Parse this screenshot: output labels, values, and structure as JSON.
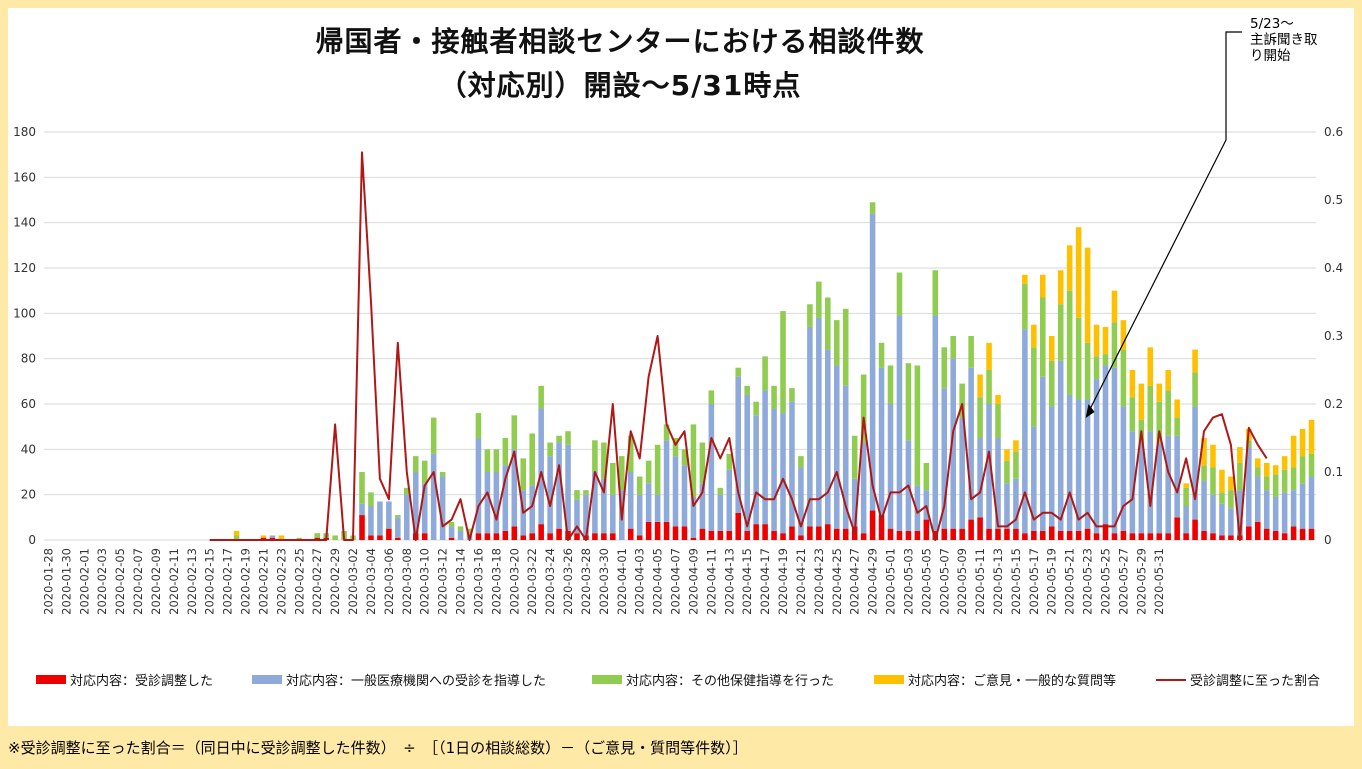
{
  "title_line1": "帰国者・接触者相談センターにおける相談件数",
  "title_line2": "（対応別）開設～5/31時点",
  "annotation": "5/23～\n主訴聞き取\nり開始",
  "footnote": "※受診調整に至った割合＝（同日中に受診調整した件数）　÷　［（1日の相談総数）－（ご意見・質問等件数）］",
  "colors": {
    "red": "#ee0000",
    "blue": "#8eaadb",
    "green": "#8fcc4f",
    "orange": "#ffc000",
    "line": "#b01818",
    "grid": "#d9d9d9",
    "background": "#ffe9a6"
  },
  "chart_data": {
    "type": "bar",
    "stacked": true,
    "secondary_line": true,
    "ylim": [
      0,
      180
    ],
    "y2lim": [
      0,
      0.6
    ],
    "yticks": [
      "0",
      "20",
      "40",
      "60",
      "80",
      "100",
      "120",
      "140",
      "160",
      "180"
    ],
    "y2ticks": [
      "0",
      "0.1",
      "0.2",
      "0.3",
      "0.4",
      "0.5",
      "0.6"
    ],
    "grid": true,
    "legend_position": "bottom",
    "start_date": "2020-01-28",
    "x_tick_labels": [
      "2020-01-28",
      "2020-01-30",
      "2020-02-01",
      "2020-02-03",
      "2020-02-05",
      "2020-02-07",
      "2020-02-09",
      "2020-02-11",
      "2020-02-13",
      "2020-02-15",
      "2020-02-17",
      "2020-02-19",
      "2020-02-21",
      "2020-02-23",
      "2020-02-25",
      "2020-02-27",
      "2020-02-29",
      "2020-03-02",
      "2020-03-04",
      "2020-03-06",
      "2020-03-08",
      "2020-03-10",
      "2020-03-12",
      "2020-03-14",
      "2020-03-16",
      "2020-03-18",
      "2020-03-20",
      "2020-03-22",
      "2020-03-24",
      "2020-03-26",
      "2020-03-28",
      "2020-03-30",
      "2020-04-01",
      "2020-04-03",
      "2020-04-05",
      "2020-04-07",
      "2020-04-09",
      "2020-04-11",
      "2020-04-13",
      "2020-04-15",
      "2020-04-17",
      "2020-04-19",
      "2020-04-21",
      "2020-04-23",
      "2020-04-25",
      "2020-04-27",
      "2020-04-29",
      "2020-05-01",
      "2020-05-03",
      "2020-05-05",
      "2020-05-07",
      "2020-05-09",
      "2020-05-11",
      "2020-05-13",
      "2020-05-15",
      "2020-05-17",
      "2020-05-19",
      "2020-05-21",
      "2020-05-23",
      "2020-05-25",
      "2020-05-27",
      "2020-05-29",
      "2020-05-31"
    ],
    "series": [
      {
        "name": "対応内容：受診調整した",
        "color": "#ee0000",
        "values": [
          0,
          0,
          0,
          0,
          0,
          0,
          0,
          0,
          0,
          0,
          0,
          0,
          0,
          0,
          0,
          0,
          0,
          0,
          0,
          0,
          0,
          0,
          0,
          0,
          1,
          1,
          0,
          0,
          0,
          0,
          1,
          1,
          0,
          0,
          0,
          11,
          2,
          2,
          5,
          1,
          0,
          3,
          3,
          0,
          0,
          1,
          0,
          0,
          3,
          3,
          3,
          4,
          6,
          2,
          3,
          7,
          3,
          5,
          4,
          3,
          2,
          3,
          3,
          3,
          0,
          5,
          2,
          8,
          8,
          8,
          6,
          6,
          1,
          5,
          4,
          4,
          4,
          12,
          4,
          7,
          7,
          4,
          3,
          6,
          2,
          6,
          6,
          7,
          5,
          5,
          6,
          3,
          13,
          11,
          5,
          4,
          4,
          4,
          9,
          4,
          5,
          5,
          5,
          9,
          10,
          5,
          5,
          5,
          5,
          3,
          4,
          4,
          6,
          4,
          4,
          4,
          5,
          3,
          7,
          3,
          4,
          3,
          3,
          3,
          3,
          3,
          10,
          3,
          9,
          4,
          3,
          2,
          2,
          2,
          6,
          8,
          5,
          4,
          3,
          6,
          5,
          5
        ]
      },
      {
        "name": "対応内容：一般医療機関への受診を指導した",
        "color": "#8eaadb",
        "values": [
          0,
          0,
          0,
          0,
          0,
          0,
          0,
          0,
          0,
          0,
          0,
          0,
          0,
          0,
          0,
          0,
          0,
          0,
          0,
          0,
          0,
          0,
          0,
          0,
          0,
          1,
          0,
          0,
          0,
          0,
          0,
          0,
          0,
          0,
          0,
          5,
          13,
          15,
          12,
          9,
          20,
          27,
          22,
          38,
          28,
          5,
          4,
          2,
          42,
          27,
          27,
          29,
          34,
          20,
          21,
          51,
          34,
          38,
          38,
          15,
          18,
          27,
          24,
          17,
          22,
          25,
          18,
          17,
          12,
          36,
          31,
          27,
          18,
          20,
          56,
          16,
          27,
          60,
          60,
          48,
          59,
          54,
          53,
          55,
          30,
          88,
          92,
          77,
          72,
          63,
          21,
          40,
          131,
          65,
          55,
          95,
          40,
          20,
          13,
          95,
          62,
          75,
          49,
          67,
          35,
          55,
          40,
          20,
          22,
          90,
          46,
          68,
          53,
          75,
          60,
          58,
          57,
          68,
          70,
          73,
          55,
          45,
          40,
          45,
          40,
          43,
          36,
          12,
          50,
          22,
          17,
          14,
          12,
          20,
          35,
          20,
          17,
          15,
          18,
          16,
          20,
          23
        ]
      },
      {
        "name": "対応内容：その他保健指導を行った",
        "color": "#8fcc4f",
        "values": [
          0,
          0,
          0,
          0,
          0,
          0,
          0,
          0,
          0,
          0,
          0,
          0,
          0,
          0,
          0,
          0,
          0,
          0,
          0,
          0,
          0,
          2,
          0,
          0,
          0,
          0,
          0,
          0,
          1,
          0,
          2,
          2,
          2,
          4,
          2,
          14,
          6,
          0,
          0,
          1,
          3,
          7,
          10,
          16,
          2,
          2,
          2,
          3,
          11,
          10,
          10,
          12,
          15,
          14,
          23,
          10,
          6,
          3,
          6,
          4,
          2,
          14,
          16,
          14,
          15,
          16,
          8,
          10,
          22,
          7,
          8,
          7,
          32,
          18,
          6,
          3,
          7,
          4,
          4,
          6,
          15,
          10,
          45,
          6,
          5,
          10,
          16,
          23,
          20,
          34,
          19,
          30,
          5,
          11,
          17,
          19,
          34,
          53,
          12,
          20,
          18,
          10,
          15,
          14,
          18,
          15,
          15,
          10,
          12,
          20,
          35,
          35,
          20,
          25,
          46,
          36,
          25,
          10,
          5,
          20,
          25,
          15,
          10,
          20,
          18,
          20,
          8,
          8,
          15,
          7,
          12,
          5,
          8,
          12,
          3,
          4,
          6,
          10,
          10,
          10,
          12,
          10
        ]
      },
      {
        "name": "対応内容：ご意見・一般的な質問等",
        "color": "#ffc000",
        "values": [
          0,
          0,
          0,
          0,
          0,
          0,
          0,
          0,
          0,
          0,
          0,
          0,
          0,
          0,
          0,
          0,
          0,
          0,
          0,
          0,
          0,
          2,
          0,
          0,
          1,
          0,
          2,
          0,
          0,
          0,
          0,
          0,
          0,
          0,
          0,
          0,
          0,
          0,
          0,
          0,
          0,
          0,
          0,
          0,
          0,
          0,
          0,
          0,
          0,
          0,
          0,
          0,
          0,
          0,
          0,
          0,
          0,
          0,
          0,
          0,
          0,
          0,
          0,
          0,
          0,
          0,
          0,
          0,
          0,
          0,
          0,
          0,
          0,
          0,
          0,
          0,
          0,
          0,
          0,
          0,
          0,
          0,
          0,
          0,
          0,
          0,
          0,
          0,
          0,
          0,
          0,
          0,
          0,
          0,
          0,
          0,
          0,
          0,
          0,
          0,
          0,
          0,
          0,
          0,
          10,
          12,
          4,
          5,
          5,
          4,
          10,
          10,
          11,
          15,
          20,
          40,
          42,
          14,
          12,
          14,
          13,
          12,
          16,
          17,
          8,
          9,
          8,
          2,
          10,
          12,
          10,
          10,
          6,
          7,
          5,
          4,
          6,
          4,
          6,
          14,
          12,
          15
        ]
      },
      {
        "name": "受診調整に至った割合",
        "color": "#b01818",
        "line": true,
        "values": [
          null,
          null,
          null,
          null,
          null,
          null,
          null,
          null,
          null,
          null,
          null,
          null,
          null,
          null,
          null,
          null,
          null,
          null,
          0,
          0,
          0,
          0,
          0,
          0,
          0,
          0,
          0,
          0,
          0,
          0,
          0,
          0,
          0.17,
          0,
          0,
          0.57,
          0.35,
          0.09,
          0.06,
          0.29,
          0.1,
          0,
          0.08,
          0.1,
          0.02,
          0.03,
          0.06,
          0,
          0.05,
          0.07,
          0.03,
          0.09,
          0.13,
          0.04,
          0.05,
          0.1,
          0.05,
          0.11,
          0,
          0.02,
          0,
          0.1,
          0.07,
          0.2,
          0.03,
          0.16,
          0.12,
          0.24,
          0.3,
          0.17,
          0.14,
          0.16,
          0.05,
          0.07,
          0.15,
          0.12,
          0.15,
          0.07,
          0.02,
          0.07,
          0.06,
          0.06,
          0.09,
          0.06,
          0.02,
          0.06,
          0.06,
          0.07,
          0.1,
          0.05,
          0.01,
          0.18,
          0.08,
          0.03,
          0.07,
          0.07,
          0.08,
          0.04,
          0.05,
          0,
          0.05,
          0.16,
          0.2,
          0.06,
          0.07,
          0.13,
          0.02,
          0.02,
          0.03,
          0.07,
          0.03,
          0.04,
          0.04,
          0.03,
          0.07,
          0.03,
          0.04,
          0.02,
          0.02,
          0.02,
          0.05,
          0.06,
          0.16,
          0.05,
          0.16,
          0.1,
          0.07,
          0.12,
          0.06,
          0.16,
          0.18,
          0.185,
          0.14,
          0,
          0.165,
          0.14,
          0.12
        ]
      }
    ]
  }
}
